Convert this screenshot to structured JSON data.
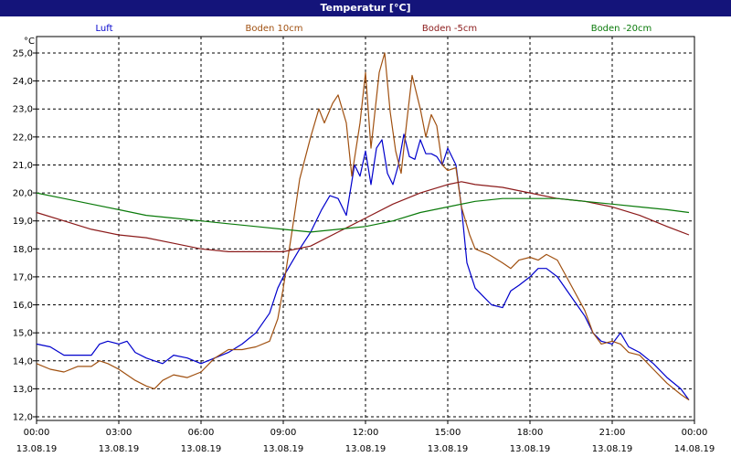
{
  "window": {
    "title": "Temperatur [°C]"
  },
  "colors": {
    "title_bar": "#14147a",
    "grid": "#000000",
    "axis": "#000000",
    "text": "#000000"
  },
  "chart_data": {
    "type": "line",
    "title": "Temperatur [°C]",
    "ylabel": "°C",
    "xlabel": "",
    "ylim": [
      12.0,
      25.0
    ],
    "y_ticks": [
      "12,0",
      "13,0",
      "14,0",
      "15,0",
      "16,0",
      "17,0",
      "18,0",
      "19,0",
      "20,0",
      "21,0",
      "22,0",
      "23,0",
      "24,0",
      "25,0"
    ],
    "xlim": [
      0,
      24
    ],
    "x_ticks": [
      {
        "x": 0,
        "time": "00:00",
        "date": "13.08.19"
      },
      {
        "x": 3,
        "time": "03:00",
        "date": "13.08.19"
      },
      {
        "x": 6,
        "time": "06:00",
        "date": "13.08.19"
      },
      {
        "x": 9,
        "time": "09:00",
        "date": "13.08.19"
      },
      {
        "x": 12,
        "time": "12:00",
        "date": "13.08.19"
      },
      {
        "x": 15,
        "time": "15:00",
        "date": "13.08.19"
      },
      {
        "x": 18,
        "time": "18:00",
        "date": "13.08.19"
      },
      {
        "x": 21,
        "time": "21:00",
        "date": "13.08.19"
      },
      {
        "x": 24,
        "time": "00:00",
        "date": "14.08.19"
      }
    ],
    "grid": true,
    "legend_position": "top",
    "series": [
      {
        "name": "Luft",
        "color": "#0000cc",
        "points": [
          [
            0,
            14.6
          ],
          [
            0.5,
            14.5
          ],
          [
            1,
            14.2
          ],
          [
            1.5,
            14.2
          ],
          [
            2,
            14.2
          ],
          [
            2.3,
            14.6
          ],
          [
            2.6,
            14.7
          ],
          [
            3,
            14.6
          ],
          [
            3.3,
            14.7
          ],
          [
            3.6,
            14.3
          ],
          [
            4,
            14.1
          ],
          [
            4.3,
            14.0
          ],
          [
            4.6,
            13.9
          ],
          [
            5,
            14.2
          ],
          [
            5.5,
            14.1
          ],
          [
            6,
            13.9
          ],
          [
            6.5,
            14.1
          ],
          [
            7,
            14.3
          ],
          [
            7.5,
            14.6
          ],
          [
            8,
            15.0
          ],
          [
            8.5,
            15.7
          ],
          [
            8.8,
            16.6
          ],
          [
            9,
            17.0
          ],
          [
            9.3,
            17.5
          ],
          [
            9.6,
            18.0
          ],
          [
            10,
            18.6
          ],
          [
            10.4,
            19.4
          ],
          [
            10.7,
            19.9
          ],
          [
            11,
            19.8
          ],
          [
            11.3,
            19.2
          ],
          [
            11.6,
            21.0
          ],
          [
            11.8,
            20.6
          ],
          [
            12,
            21.5
          ],
          [
            12.2,
            20.3
          ],
          [
            12.4,
            21.6
          ],
          [
            12.6,
            21.9
          ],
          [
            12.8,
            20.7
          ],
          [
            13,
            20.3
          ],
          [
            13.2,
            21.0
          ],
          [
            13.4,
            22.1
          ],
          [
            13.6,
            21.3
          ],
          [
            13.8,
            21.2
          ],
          [
            14,
            21.9
          ],
          [
            14.2,
            21.4
          ],
          [
            14.4,
            21.4
          ],
          [
            14.6,
            21.3
          ],
          [
            14.8,
            21.0
          ],
          [
            15,
            21.6
          ],
          [
            15.3,
            21.0
          ],
          [
            15.5,
            19.5
          ],
          [
            15.7,
            17.5
          ],
          [
            16,
            16.6
          ],
          [
            16.3,
            16.3
          ],
          [
            16.6,
            16.0
          ],
          [
            17,
            15.9
          ],
          [
            17.3,
            16.5
          ],
          [
            17.6,
            16.7
          ],
          [
            18,
            17.0
          ],
          [
            18.3,
            17.3
          ],
          [
            18.6,
            17.3
          ],
          [
            19,
            17.0
          ],
          [
            19.5,
            16.3
          ],
          [
            20,
            15.6
          ],
          [
            20.3,
            15.0
          ],
          [
            20.6,
            14.7
          ],
          [
            21,
            14.6
          ],
          [
            21.3,
            15.0
          ],
          [
            21.6,
            14.5
          ],
          [
            22,
            14.3
          ],
          [
            22.5,
            13.9
          ],
          [
            23,
            13.4
          ],
          [
            23.5,
            13.0
          ],
          [
            23.8,
            12.6
          ]
        ]
      },
      {
        "name": "Boden 10cm",
        "color": "#a05010",
        "points": [
          [
            0,
            13.9
          ],
          [
            0.5,
            13.7
          ],
          [
            1,
            13.6
          ],
          [
            1.5,
            13.8
          ],
          [
            2,
            13.8
          ],
          [
            2.3,
            14.0
          ],
          [
            2.6,
            13.9
          ],
          [
            3,
            13.7
          ],
          [
            3.3,
            13.5
          ],
          [
            3.6,
            13.3
          ],
          [
            4,
            13.1
          ],
          [
            4.3,
            13.0
          ],
          [
            4.6,
            13.3
          ],
          [
            5,
            13.5
          ],
          [
            5.5,
            13.4
          ],
          [
            6,
            13.6
          ],
          [
            6.5,
            14.1
          ],
          [
            7,
            14.4
          ],
          [
            7.5,
            14.4
          ],
          [
            8,
            14.5
          ],
          [
            8.5,
            14.7
          ],
          [
            8.8,
            15.5
          ],
          [
            9,
            16.6
          ],
          [
            9.3,
            18.5
          ],
          [
            9.6,
            20.5
          ],
          [
            10,
            22.0
          ],
          [
            10.3,
            23.0
          ],
          [
            10.5,
            22.5
          ],
          [
            10.8,
            23.2
          ],
          [
            11,
            23.5
          ],
          [
            11.3,
            22.5
          ],
          [
            11.5,
            20.6
          ],
          [
            11.8,
            22.5
          ],
          [
            12,
            24.3
          ],
          [
            12.2,
            21.6
          ],
          [
            12.5,
            24.3
          ],
          [
            12.7,
            25.0
          ],
          [
            12.9,
            22.9
          ],
          [
            13.1,
            21.5
          ],
          [
            13.3,
            20.7
          ],
          [
            13.5,
            22.5
          ],
          [
            13.7,
            24.2
          ],
          [
            14,
            23.0
          ],
          [
            14.2,
            22.0
          ],
          [
            14.4,
            22.8
          ],
          [
            14.6,
            22.4
          ],
          [
            14.8,
            21.0
          ],
          [
            15,
            20.8
          ],
          [
            15.3,
            20.9
          ],
          [
            15.5,
            19.5
          ],
          [
            15.8,
            18.5
          ],
          [
            16,
            18.0
          ],
          [
            16.5,
            17.8
          ],
          [
            17,
            17.5
          ],
          [
            17.3,
            17.3
          ],
          [
            17.6,
            17.6
          ],
          [
            18,
            17.7
          ],
          [
            18.3,
            17.6
          ],
          [
            18.6,
            17.8
          ],
          [
            19,
            17.6
          ],
          [
            19.5,
            16.7
          ],
          [
            20,
            15.8
          ],
          [
            20.3,
            15.0
          ],
          [
            20.6,
            14.6
          ],
          [
            21,
            14.7
          ],
          [
            21.3,
            14.6
          ],
          [
            21.6,
            14.3
          ],
          [
            22,
            14.2
          ],
          [
            22.5,
            13.7
          ],
          [
            23,
            13.2
          ],
          [
            23.5,
            12.8
          ],
          [
            23.8,
            12.6
          ]
        ]
      },
      {
        "name": "Boden -5cm",
        "color": "#8b1a1a",
        "points": [
          [
            0,
            19.3
          ],
          [
            1,
            19.0
          ],
          [
            2,
            18.7
          ],
          [
            3,
            18.5
          ],
          [
            4,
            18.4
          ],
          [
            5,
            18.2
          ],
          [
            6,
            18.0
          ],
          [
            7,
            17.9
          ],
          [
            8,
            17.9
          ],
          [
            9,
            17.9
          ],
          [
            10,
            18.1
          ],
          [
            11,
            18.6
          ],
          [
            12,
            19.1
          ],
          [
            13,
            19.6
          ],
          [
            14,
            20.0
          ],
          [
            15,
            20.3
          ],
          [
            15.5,
            20.4
          ],
          [
            16,
            20.3
          ],
          [
            17,
            20.2
          ],
          [
            18,
            20.0
          ],
          [
            19,
            19.8
          ],
          [
            20,
            19.7
          ],
          [
            21,
            19.5
          ],
          [
            22,
            19.2
          ],
          [
            23,
            18.8
          ],
          [
            23.8,
            18.5
          ]
        ]
      },
      {
        "name": "Boden -20cm",
        "color": "#0a7a0a",
        "points": [
          [
            0,
            20.0
          ],
          [
            1,
            19.8
          ],
          [
            2,
            19.6
          ],
          [
            3,
            19.4
          ],
          [
            4,
            19.2
          ],
          [
            5,
            19.1
          ],
          [
            6,
            19.0
          ],
          [
            7,
            18.9
          ],
          [
            8,
            18.8
          ],
          [
            9,
            18.7
          ],
          [
            10,
            18.6
          ],
          [
            11,
            18.7
          ],
          [
            12,
            18.8
          ],
          [
            13,
            19.0
          ],
          [
            14,
            19.3
          ],
          [
            15,
            19.5
          ],
          [
            16,
            19.7
          ],
          [
            17,
            19.8
          ],
          [
            18,
            19.8
          ],
          [
            19,
            19.8
          ],
          [
            20,
            19.7
          ],
          [
            21,
            19.6
          ],
          [
            22,
            19.5
          ],
          [
            23,
            19.4
          ],
          [
            23.8,
            19.3
          ]
        ]
      }
    ]
  }
}
